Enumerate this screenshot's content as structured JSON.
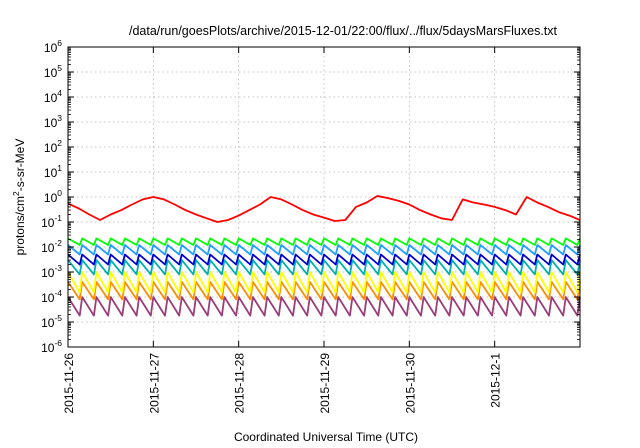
{
  "chart_data": {
    "type": "line",
    "title": "/data/run/goesPlots/archive/2015-12-01/22:00/flux/../flux/5daysMarsFluxes.txt",
    "xlabel": "Coordinated Universal Time (UTC)",
    "ylabel": {
      "pre": "protons/cm",
      "sup": "2",
      "post": "-s-sr-MeV"
    },
    "yscale": "log",
    "ylim": [
      1e-06,
      1000000.0
    ],
    "y_ticks": [
      {
        "base": "10",
        "exp": "-6"
      },
      {
        "base": "10",
        "exp": "-5"
      },
      {
        "base": "10",
        "exp": "-4"
      },
      {
        "base": "10",
        "exp": "-3"
      },
      {
        "base": "10",
        "exp": "-2"
      },
      {
        "base": "10",
        "exp": "-1"
      },
      {
        "base": "10",
        "exp": "0"
      },
      {
        "base": "10",
        "exp": "1"
      },
      {
        "base": "10",
        "exp": "2"
      },
      {
        "base": "10",
        "exp": "3"
      },
      {
        "base": "10",
        "exp": "4"
      },
      {
        "base": "10",
        "exp": "5"
      },
      {
        "base": "10",
        "exp": "6"
      }
    ],
    "xlim": [
      "2015-11-26",
      "2015-12-02"
    ],
    "x_ticks": [
      "2015-11-26",
      "2015-11-27",
      "2015-11-28",
      "2015-11-29",
      "2015-11-30",
      "2015-12-1"
    ],
    "grid": true,
    "legend": "none",
    "series": [
      {
        "color": "#ff0000",
        "x": [
          "2015-11-26 00:00",
          "2015-11-26 03:00",
          "2015-11-26 06:00",
          "2015-11-26 09:00",
          "2015-11-26 12:00",
          "2015-11-26 15:00",
          "2015-11-26 18:00",
          "2015-11-26 21:00",
          "2015-11-27 00:00",
          "2015-11-27 03:00",
          "2015-11-27 06:00",
          "2015-11-27 09:00",
          "2015-11-27 12:00",
          "2015-11-27 15:00",
          "2015-11-27 18:00",
          "2015-11-27 21:00",
          "2015-11-28 00:00",
          "2015-11-28 03:00",
          "2015-11-28 06:00",
          "2015-11-28 09:00",
          "2015-11-28 12:00",
          "2015-11-28 15:00",
          "2015-11-28 18:00",
          "2015-11-28 21:00",
          "2015-11-29 00:00",
          "2015-11-29 03:00",
          "2015-11-29 06:00",
          "2015-11-29 09:00",
          "2015-11-29 12:00",
          "2015-11-29 15:00",
          "2015-11-29 18:00",
          "2015-11-29 21:00",
          "2015-11-30 00:00",
          "2015-11-30 03:00",
          "2015-11-30 06:00",
          "2015-11-30 09:00",
          "2015-11-30 12:00",
          "2015-11-30 15:00",
          "2015-11-30 18:00",
          "2015-11-30 21:00",
          "2015-12-01 00:00",
          "2015-12-01 03:00",
          "2015-12-01 06:00",
          "2015-12-01 09:00",
          "2015-12-01 12:00",
          "2015-12-01 15:00",
          "2015-12-01 18:00",
          "2015-12-01 21:00",
          "2015-12-01 23:59"
        ],
        "values": [
          0.55,
          0.35,
          0.2,
          0.12,
          0.2,
          0.3,
          0.5,
          0.8,
          1.0,
          0.8,
          0.5,
          0.3,
          0.2,
          0.14,
          0.1,
          0.12,
          0.18,
          0.3,
          0.5,
          1.0,
          0.8,
          0.5,
          0.3,
          0.2,
          0.15,
          0.11,
          0.12,
          0.4,
          0.6,
          1.1,
          0.9,
          0.7,
          0.5,
          0.3,
          0.2,
          0.14,
          0.12,
          0.8,
          0.6,
          0.5,
          0.4,
          0.3,
          0.2,
          1.0,
          0.6,
          0.4,
          0.25,
          0.18,
          0.12
        ]
      },
      {
        "color": "#00ff00",
        "x_range": [
          "2015-11-26",
          "2015-12-02"
        ],
        "high": 0.022,
        "low": 0.012
      },
      {
        "color": "#1f9fff",
        "x_range": [
          "2015-11-26",
          "2015-12-02"
        ],
        "high": 0.012,
        "low": 0.005
      },
      {
        "color": "#0000cc",
        "x_range": [
          "2015-11-26",
          "2015-12-02"
        ],
        "high": 0.005,
        "low": 0.002
      },
      {
        "color": "#00b0b0",
        "x_range": [
          "2015-11-26",
          "2015-12-02"
        ],
        "high": 0.003,
        "low": 0.0008
      },
      {
        "color": "#ffff00",
        "x_range": [
          "2015-11-26",
          "2015-12-02"
        ],
        "high": 0.001,
        "low": 0.00015
      },
      {
        "color": "#ff8c00",
        "x_range": [
          "2015-11-26",
          "2015-12-02"
        ],
        "high": 0.0004,
        "low": 8e-05
      },
      {
        "color": "#9b3d7a",
        "x_range": [
          "2015-11-26",
          "2015-12-02"
        ],
        "high": 0.0001,
        "low": 1.8e-05
      }
    ]
  }
}
